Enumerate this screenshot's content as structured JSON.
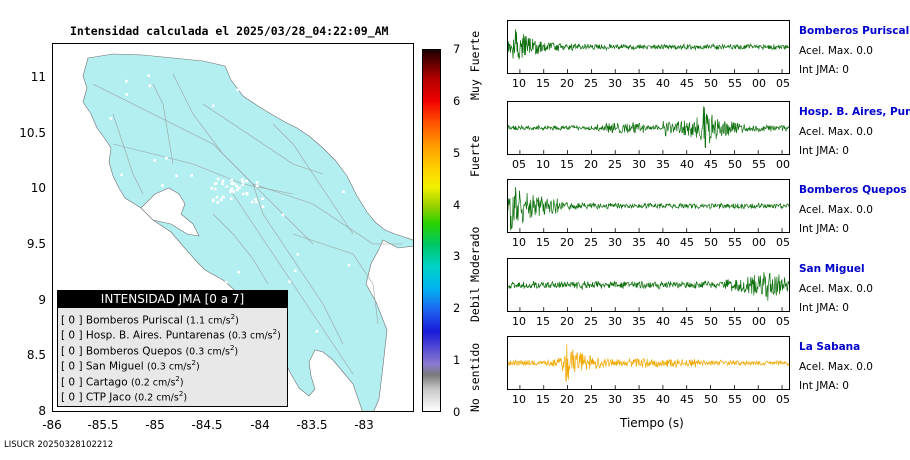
{
  "map": {
    "title": "Intensidad calculada el 2025/03/28_04:22:09_AM",
    "y_ticks": [
      "11",
      "10.5",
      "10",
      "9.5",
      "9",
      "8.5",
      "8"
    ],
    "x_ticks": [
      "-86",
      "-85.5",
      "-85",
      "-84.5",
      "-84",
      "-83.5",
      "-83"
    ],
    "fill_color": "#b3eef0"
  },
  "legend": {
    "title": "INTENSIDAD JMA [0 a 7]",
    "items": [
      {
        "prefix": "[ 0 ]",
        "name": "Bomberos Puriscal",
        "value": "(1.1 cm/s",
        "sup": "2",
        "close": ")"
      },
      {
        "prefix": "[ 0 ]",
        "name": "Hosp. B. Aires. Puntarenas",
        "value": "(0.3 cm/s",
        "sup": "2",
        "close": ")"
      },
      {
        "prefix": "[ 0 ]",
        "name": "Bomberos Quepos",
        "value": "(0.3 cm/s",
        "sup": "2",
        "close": ")"
      },
      {
        "prefix": "[ 0 ]",
        "name": "San Miguel",
        "value": "(0.3 cm/s",
        "sup": "2",
        "close": ")"
      },
      {
        "prefix": "[ 0 ]",
        "name": "Cartago",
        "value": "(0.2 cm/s",
        "sup": "2",
        "close": ")"
      },
      {
        "prefix": "[ 0 ]",
        "name": "CTP Jaco",
        "value": "(0.2 cm/s",
        "sup": "2",
        "close": ")"
      }
    ]
  },
  "colorbar": {
    "ticks": [
      "7",
      "6",
      "5",
      "4",
      "3",
      "2",
      "1",
      "0"
    ],
    "labels": [
      "Muy Fuerte",
      "Fuerte",
      "Moderado",
      "Debil",
      "No sentido"
    ]
  },
  "chart_data": {
    "type": "line",
    "xlabel": "Tiempo (s)",
    "series": [
      {
        "name": "Bomberos Puriscal",
        "color": "#0a6e0a",
        "ticks": [
          "10",
          "15",
          "20",
          "25",
          "30",
          "35",
          "40",
          "45",
          "50",
          "55",
          "00",
          "05"
        ],
        "peak_time": 10.5,
        "accel": "Acel. Max. 0.0",
        "jma": "Int JMA: 0"
      },
      {
        "name": "Hosp. B. Aires, Puntare",
        "color": "#0a6e0a",
        "ticks": [
          "05",
          "10",
          "15",
          "20",
          "25",
          "30",
          "35",
          "40",
          "45",
          "50",
          "55",
          "00"
        ],
        "peak_time": 50.5,
        "accel": "Acel. Max. 0.0",
        "jma": "Int JMA: 0"
      },
      {
        "name": "Bomberos Quepos",
        "color": "#0a6e0a",
        "ticks": [
          "10",
          "15",
          "20",
          "25",
          "30",
          "35",
          "40",
          "45",
          "50",
          "55",
          "00",
          "05"
        ],
        "peak_time": 10,
        "accel": "Acel. Max. 0.0",
        "jma": "Int JMA: 0"
      },
      {
        "name": "San Miguel",
        "color": "#0a6e0a",
        "ticks": [
          "10",
          "15",
          "20",
          "25",
          "30",
          "35",
          "40",
          "45",
          "50",
          "55",
          "00",
          "05"
        ],
        "peak_time": 64,
        "accel": "Acel. Max. 0.0",
        "jma": "Int JMA: 0"
      },
      {
        "name": "La Sabana",
        "color": "#f0a800",
        "ticks": [
          "10",
          "15",
          "20",
          "25",
          "30",
          "35",
          "40",
          "45",
          "50",
          "55",
          "00",
          "05"
        ],
        "peak_time": 21.5,
        "accel": "Acel. Max. 0.0",
        "jma": "Int JMA: 0"
      }
    ]
  },
  "footer": "LISUCR 20250328102212"
}
